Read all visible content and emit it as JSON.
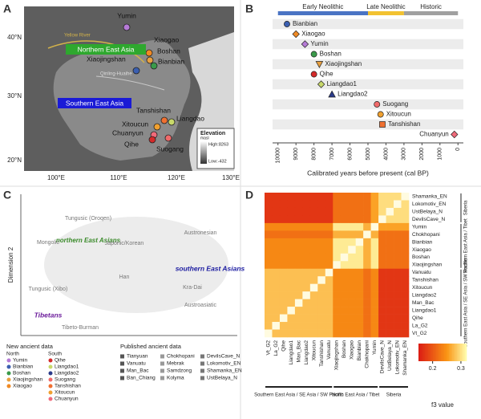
{
  "panel_a": {
    "letter": "A",
    "sites": [
      "Yumin",
      "Xiaogao",
      "Boshan",
      "Bianbian",
      "Xiaojingshan",
      "Tanshishan",
      "Liangdao",
      "Xitoucun",
      "Chuanyun",
      "Qihe",
      "Suogang"
    ],
    "regions": [
      "Northern East Asia",
      "Southern East Asia"
    ],
    "rivers": [
      "Yellow River",
      "Qinling-Huaihe"
    ],
    "lat_labels": [
      "40°N",
      "30°N",
      "20°N"
    ],
    "lon_labels": [
      "100°E",
      "110°E",
      "120°E",
      "130°E"
    ],
    "legend": {
      "title": "Elevation",
      "unit": "masl",
      "high": "High:8263",
      "low": "Low:-432"
    }
  },
  "chart_data": [
    {
      "type": "timeline",
      "letter": "B",
      "categories": [
        "Bianbian",
        "Xiaogao",
        "Yumin",
        "Boshan",
        "Xiaojingshan",
        "Qihe",
        "Liangdao1",
        "Liangdao2",
        "Suogang",
        "Xitoucun",
        "Tanshishan",
        "Chuanyun"
      ],
      "values": [
        9500,
        9000,
        8500,
        8000,
        7700,
        8000,
        7600,
        7000,
        4500,
        4300,
        4200,
        200
      ],
      "colors": [
        "#3b5fb0",
        "#f08a24",
        "#b57ad6",
        "#3a9a4a",
        "#e8a040",
        "#d42a2a",
        "#c8d86a",
        "#2a3a8a",
        "#f06a6a",
        "#f0a030",
        "#f07030",
        "#f06a7a"
      ],
      "markers": [
        "circle",
        "diamond",
        "diamond",
        "circle",
        "triangle-down",
        "circle",
        "diamond",
        "triangle",
        "circle",
        "circle",
        "square",
        "diamond"
      ],
      "periods": [
        {
          "label": "Early Neolithic",
          "start": 10000,
          "end": 5000,
          "color": "#4a74c4"
        },
        {
          "label": "Late Neolithic",
          "start": 5000,
          "end": 3000,
          "color": "#f2c230"
        },
        {
          "label": "Historic",
          "start": 3000,
          "end": 0,
          "color": "#a0a0a0"
        }
      ],
      "xlim": [
        10300,
        -300
      ],
      "xticks": [
        10000,
        9000,
        8000,
        7000,
        6000,
        5000,
        4000,
        3000,
        2000,
        1000,
        0
      ],
      "xlabel": "Calibrated years before present (cal BP)"
    },
    {
      "type": "heatmap",
      "letter": "D",
      "labels": [
        "Shamanka_EN",
        "Lokomotiv_EN",
        "UstBelaya_N",
        "DevilsCave_N",
        "Yumin",
        "Chokhopani",
        "Bianbian",
        "Xiaogao",
        "Boshan",
        "Xiaojingshan",
        "Vanuatu",
        "Tanshishan",
        "Xitoucun",
        "Liangdao2",
        "Man_Bac",
        "Liangdao1",
        "Qihe",
        "La_G2",
        "Vt_G2"
      ],
      "groups": [
        "Siberia",
        "Northern East Asia / Tibet",
        "Southern East Asia / SE Asia / SW Pacific"
      ],
      "bottom_groups": [
        "Southern East Asia / SE Asia / SW Pacific",
        "North East Asia / Tibet",
        "Siberia"
      ],
      "values": [
        [
          null,
          0.3,
          0.3,
          0.3,
          0.26,
          0.22,
          0.22,
          0.22,
          0.22,
          0.22,
          0.17,
          0.17,
          0.17,
          0.17,
          0.17,
          0.17,
          0.17,
          0.17,
          0.17
        ],
        [
          0.3,
          null,
          0.3,
          0.3,
          0.26,
          0.22,
          0.22,
          0.22,
          0.22,
          0.22,
          0.17,
          0.17,
          0.17,
          0.17,
          0.17,
          0.17,
          0.17,
          0.17,
          0.17
        ],
        [
          0.3,
          0.3,
          null,
          0.3,
          0.26,
          0.22,
          0.22,
          0.22,
          0.22,
          0.22,
          0.17,
          0.17,
          0.17,
          0.17,
          0.17,
          0.17,
          0.17,
          0.17,
          0.17
        ],
        [
          0.3,
          0.3,
          0.3,
          null,
          0.26,
          0.22,
          0.22,
          0.22,
          0.22,
          0.22,
          0.17,
          0.17,
          0.17,
          0.17,
          0.17,
          0.17,
          0.17,
          0.17,
          0.17
        ],
        [
          0.26,
          0.26,
          0.26,
          0.26,
          null,
          0.27,
          0.31,
          0.31,
          0.31,
          0.31,
          0.24,
          0.24,
          0.24,
          0.24,
          0.24,
          0.24,
          0.24,
          0.24,
          0.24
        ],
        [
          0.22,
          0.22,
          0.22,
          0.22,
          0.27,
          null,
          0.27,
          0.27,
          0.27,
          0.27,
          0.22,
          0.22,
          0.22,
          0.22,
          0.22,
          0.22,
          0.22,
          0.22,
          0.22
        ],
        [
          0.22,
          0.22,
          0.22,
          0.22,
          0.31,
          0.27,
          null,
          0.31,
          0.31,
          0.31,
          0.24,
          0.24,
          0.24,
          0.24,
          0.24,
          0.24,
          0.24,
          0.24,
          0.24
        ],
        [
          0.22,
          0.22,
          0.22,
          0.22,
          0.31,
          0.27,
          0.31,
          null,
          0.31,
          0.31,
          0.24,
          0.24,
          0.24,
          0.24,
          0.24,
          0.24,
          0.24,
          0.24,
          0.24
        ],
        [
          0.22,
          0.22,
          0.22,
          0.22,
          0.31,
          0.27,
          0.31,
          0.31,
          null,
          0.31,
          0.24,
          0.24,
          0.24,
          0.24,
          0.24,
          0.24,
          0.24,
          0.24,
          0.24
        ],
        [
          0.22,
          0.22,
          0.22,
          0.22,
          0.31,
          0.27,
          0.31,
          0.31,
          0.31,
          null,
          0.24,
          0.24,
          0.24,
          0.24,
          0.24,
          0.24,
          0.24,
          0.24,
          0.24
        ],
        [
          0.17,
          0.17,
          0.17,
          0.17,
          0.24,
          0.22,
          0.24,
          0.24,
          0.24,
          0.24,
          null,
          0.28,
          0.28,
          0.28,
          0.28,
          0.28,
          0.28,
          0.28,
          0.28
        ],
        [
          0.17,
          0.17,
          0.17,
          0.17,
          0.24,
          0.22,
          0.24,
          0.24,
          0.24,
          0.24,
          0.28,
          null,
          0.28,
          0.28,
          0.28,
          0.28,
          0.28,
          0.28,
          0.28
        ],
        [
          0.17,
          0.17,
          0.17,
          0.17,
          0.24,
          0.22,
          0.24,
          0.24,
          0.24,
          0.24,
          0.28,
          0.28,
          null,
          0.28,
          0.28,
          0.28,
          0.28,
          0.28,
          0.28
        ],
        [
          0.17,
          0.17,
          0.17,
          0.17,
          0.24,
          0.22,
          0.24,
          0.24,
          0.24,
          0.24,
          0.28,
          0.28,
          0.28,
          null,
          0.28,
          0.28,
          0.28,
          0.28,
          0.28
        ],
        [
          0.17,
          0.17,
          0.17,
          0.17,
          0.24,
          0.22,
          0.24,
          0.24,
          0.24,
          0.24,
          0.28,
          0.28,
          0.28,
          0.28,
          null,
          0.28,
          0.28,
          0.28,
          0.28
        ],
        [
          0.17,
          0.17,
          0.17,
          0.17,
          0.24,
          0.22,
          0.24,
          0.24,
          0.24,
          0.24,
          0.28,
          0.28,
          0.28,
          0.28,
          0.28,
          null,
          0.28,
          0.28,
          0.28
        ],
        [
          0.17,
          0.17,
          0.17,
          0.17,
          0.24,
          0.22,
          0.24,
          0.24,
          0.24,
          0.24,
          0.28,
          0.28,
          0.28,
          0.28,
          0.28,
          0.28,
          null,
          0.28,
          0.28
        ],
        [
          0.17,
          0.17,
          0.17,
          0.17,
          0.24,
          0.22,
          0.24,
          0.24,
          0.24,
          0.24,
          0.28,
          0.28,
          0.28,
          0.28,
          0.28,
          0.28,
          0.28,
          null,
          0.28
        ],
        [
          0.17,
          0.17,
          0.17,
          0.17,
          0.24,
          0.22,
          0.24,
          0.24,
          0.24,
          0.24,
          0.28,
          0.28,
          0.28,
          0.28,
          0.28,
          0.28,
          0.28,
          0.28,
          null
        ]
      ],
      "clim": [
        0.15,
        0.32
      ],
      "cticks": [
        0.2,
        0.3
      ],
      "colorbar_label": "f3 value"
    }
  ],
  "panel_c": {
    "letter": "C",
    "ylabel": "Dimension 2",
    "groups": [
      "Tungusic (Oroqen)",
      "northern East Asians",
      "Mongolic",
      "Japonic/Korean",
      "Austronesian",
      "southern East Asians",
      "Tungusic (Xibo)",
      "Han",
      "Kra-Dai",
      "Austroasiatic",
      "Tibetans",
      "Tibeto-Burman"
    ],
    "legend_new": "New ancient data",
    "legend_published": "Published ancient data",
    "north": "North",
    "south": "South",
    "north_sites": [
      "Yumin",
      "Bianbian",
      "Boshan",
      "Xiaojingshan",
      "Xiaogao"
    ],
    "south_sites": [
      "Qihe",
      "Liangdao1",
      "Liangdao2",
      "Suogang",
      "Tanshishan",
      "Xitoucun",
      "Chuanyun"
    ],
    "published": [
      "Tianyuan",
      "Vanuatu",
      "Man_Bac",
      "Ban_Chiang",
      "Chokhopani",
      "Mebrak",
      "Samdzong",
      "Kolyma",
      "DevilsCave_N",
      "Lokomotiv_EN",
      "Shamanka_EN",
      "UstBelaya_N"
    ]
  }
}
